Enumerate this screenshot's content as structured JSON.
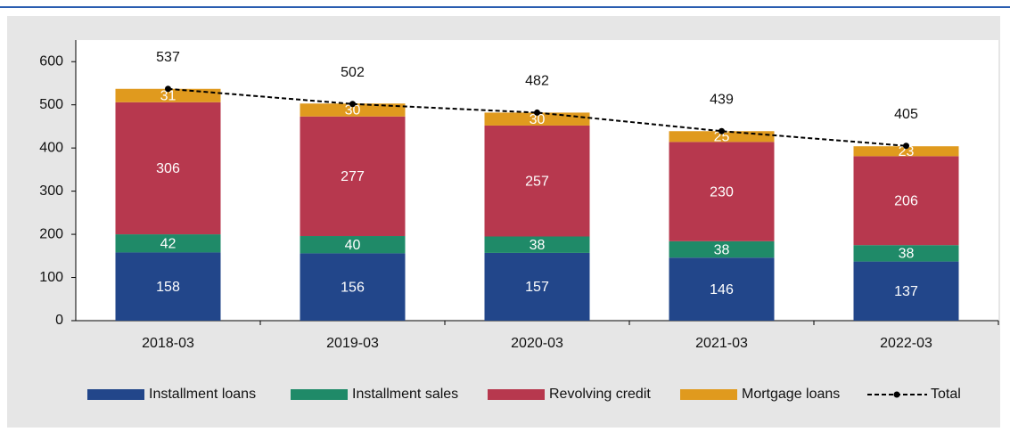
{
  "chart_data": {
    "type": "stacked-bar",
    "categories": [
      "2018-03",
      "2019-03",
      "2020-03",
      "2021-03",
      "2022-03"
    ],
    "series": [
      {
        "name": "Installment loans",
        "color": "#22468a",
        "values": [
          158,
          156,
          157,
          146,
          137
        ]
      },
      {
        "name": "Installment sales",
        "color": "#1f8a68",
        "values": [
          42,
          40,
          38,
          38,
          38
        ]
      },
      {
        "name": "Revolving credit",
        "color": "#b7384e",
        "values": [
          306,
          277,
          257,
          230,
          206
        ]
      },
      {
        "name": "Mortgage loans",
        "color": "#e09a1e",
        "values": [
          31,
          30,
          30,
          25,
          23
        ]
      }
    ],
    "total": {
      "name": "Total",
      "color": "#000000",
      "values": [
        537,
        502,
        482,
        439,
        405
      ]
    },
    "ylim": [
      0,
      650
    ],
    "yticks": [
      0,
      100,
      200,
      300,
      400,
      500,
      600
    ],
    "legend": "bottom"
  }
}
